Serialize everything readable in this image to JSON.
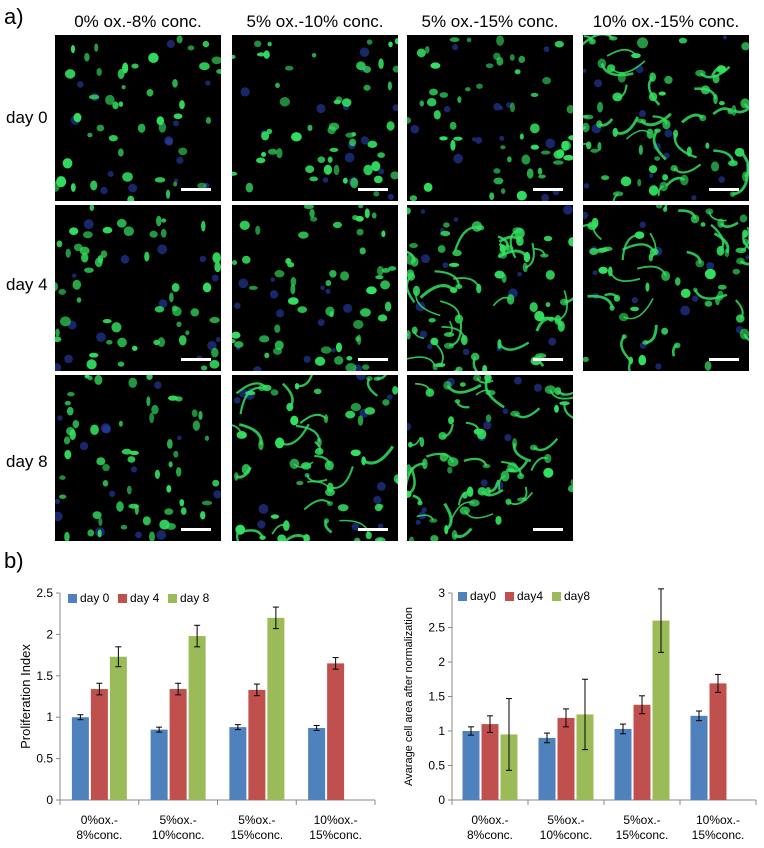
{
  "panel_a": {
    "label": "a)",
    "columns": [
      "0% ox.-8% conc.",
      "5% ox.-10% conc.",
      "5% ox.-15% conc.",
      "10% ox.-15% conc."
    ],
    "rows": [
      "day 0",
      "day 4",
      "day 8"
    ],
    "cell_color": "#33e060",
    "nucleus_color": "#2c3fb0"
  },
  "panel_b": {
    "label": "b)"
  },
  "chart_data": [
    {
      "type": "bar",
      "categories": [
        "0%ox.-\n8%conc.",
        "5%ox.-\n10%conc.",
        "5%ox.-\n15%conc.",
        "10%ox.-\n15%conc."
      ],
      "series": [
        {
          "name": "day 0",
          "values": [
            1.0,
            0.85,
            0.88,
            0.87
          ],
          "errors": [
            0.03,
            0.03,
            0.03,
            0.03
          ],
          "color": "#4f81bd"
        },
        {
          "name": "day 4",
          "values": [
            1.34,
            1.34,
            1.33,
            1.65
          ],
          "errors": [
            0.07,
            0.07,
            0.07,
            0.07
          ],
          "color": "#c0504d"
        },
        {
          "name": "day 8",
          "values": [
            1.73,
            1.98,
            2.2,
            null
          ],
          "errors": [
            0.12,
            0.13,
            0.13,
            null
          ],
          "color": "#9bbb59"
        }
      ],
      "ylabel": "Proliferation Index",
      "ylim": [
        0,
        2.5
      ],
      "yticks": [
        "0",
        "0.5",
        "1",
        "1.5",
        "2",
        "2.5"
      ],
      "legend": "top-left"
    },
    {
      "type": "bar",
      "categories": [
        "0%ox.-\n8%conc.",
        "5%ox.-\n10%conc.",
        "5%ox.-\n15%conc.",
        "10%ox.-\n15%conc."
      ],
      "series": [
        {
          "name": "day0",
          "values": [
            1.0,
            0.9,
            1.03,
            1.22
          ],
          "errors": [
            0.06,
            0.07,
            0.07,
            0.07
          ],
          "color": "#4f81bd"
        },
        {
          "name": "day4",
          "values": [
            1.1,
            1.19,
            1.38,
            1.69
          ],
          "errors": [
            0.12,
            0.13,
            0.13,
            0.13
          ],
          "color": "#c0504d"
        },
        {
          "name": "day8",
          "values": [
            0.95,
            1.24,
            2.6,
            null
          ],
          "errors": [
            0.52,
            0.51,
            0.46,
            null
          ],
          "color": "#9bbb59"
        }
      ],
      "ylabel": "Avarage cell area after normalization",
      "ylim": [
        0,
        3
      ],
      "yticks": [
        "0",
        "0.5",
        "1",
        "1.5",
        "2",
        "2.5",
        "3"
      ],
      "legend": "top-left"
    }
  ]
}
